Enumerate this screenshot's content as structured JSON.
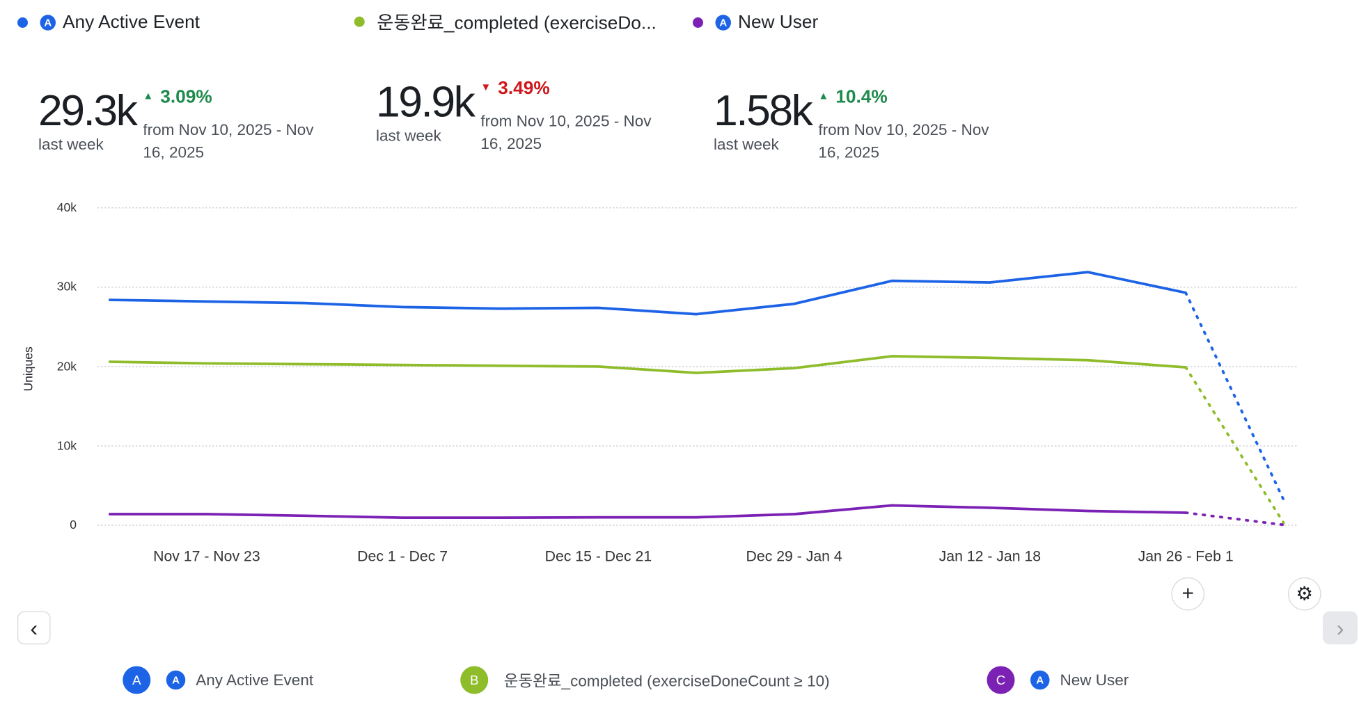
{
  "colors": {
    "A": "#1d63e6",
    "B": "#8fbc2b",
    "C": "#7b22b5",
    "up": "#1e8a4c",
    "down": "#d0161a"
  },
  "legend": [
    {
      "label": "Any Active Event"
    },
    {
      "label": "운동완료_completed (exerciseDo..."
    },
    {
      "label": "New User"
    }
  ],
  "kpis": [
    {
      "value": "29.3k",
      "period": "last week",
      "change": "3.09%",
      "direction": "up",
      "from": "from Nov 10, 2025 - Nov 16, 2025"
    },
    {
      "value": "19.9k",
      "period": "last week",
      "change": "3.49%",
      "direction": "down",
      "from": "from Nov 10, 2025 - Nov 16, 2025"
    },
    {
      "value": "1.58k",
      "period": "last week",
      "change": "10.4%",
      "direction": "up",
      "from": "from Nov 10, 2025 - Nov 16, 2025"
    }
  ],
  "chart_data": {
    "type": "line",
    "ylabel": "Uniques",
    "ylim": [
      0,
      40000
    ],
    "yticks": [
      "0",
      "10k",
      "20k",
      "30k",
      "40k"
    ],
    "ytick_values": [
      0,
      10000,
      20000,
      30000,
      40000
    ],
    "x": [
      "Nov 10",
      "Nov 17",
      "Nov 24",
      "Dec 1",
      "Dec 8",
      "Dec 15",
      "Dec 22",
      "Dec 29",
      "Jan 5",
      "Jan 12",
      "Jan 19",
      "Jan 26",
      "Feb 2"
    ],
    "xtick_labels": [
      "Nov 17 - Nov 23",
      "Dec 1 - Dec 7",
      "Dec 15 - Dec 21",
      "Dec 29 - Jan 4",
      "Jan 12 - Jan 18",
      "Jan 26 - Feb 1"
    ],
    "xtick_index": [
      1,
      3,
      5,
      7,
      9,
      11
    ],
    "grid": true,
    "incomplete_last_point": true,
    "series": [
      {
        "name": "Any Active Event",
        "key": "A",
        "values": [
          28400,
          28200,
          28000,
          27500,
          27300,
          27400,
          26600,
          27900,
          30800,
          30600,
          31900,
          29300,
          3200
        ]
      },
      {
        "name": "운동완료_completed (exerciseDoneCount ≥ 10)",
        "key": "B",
        "values": [
          20600,
          20400,
          20300,
          20200,
          20100,
          20000,
          19200,
          19800,
          21300,
          21100,
          20800,
          19900,
          300
        ]
      },
      {
        "name": "New User",
        "key": "C",
        "values": [
          1400,
          1400,
          1200,
          950,
          950,
          1000,
          1000,
          1400,
          2500,
          2200,
          1800,
          1580,
          50
        ]
      }
    ]
  },
  "bottom_legend": [
    {
      "badge": "A",
      "label": "Any Active Event"
    },
    {
      "badge": "B",
      "label": "운동완료_completed (exerciseDoneCount ≥ 10)"
    },
    {
      "badge": "C",
      "label": "New User"
    }
  ],
  "buttons": {
    "add": "+",
    "prev": "‹",
    "next": "›"
  }
}
